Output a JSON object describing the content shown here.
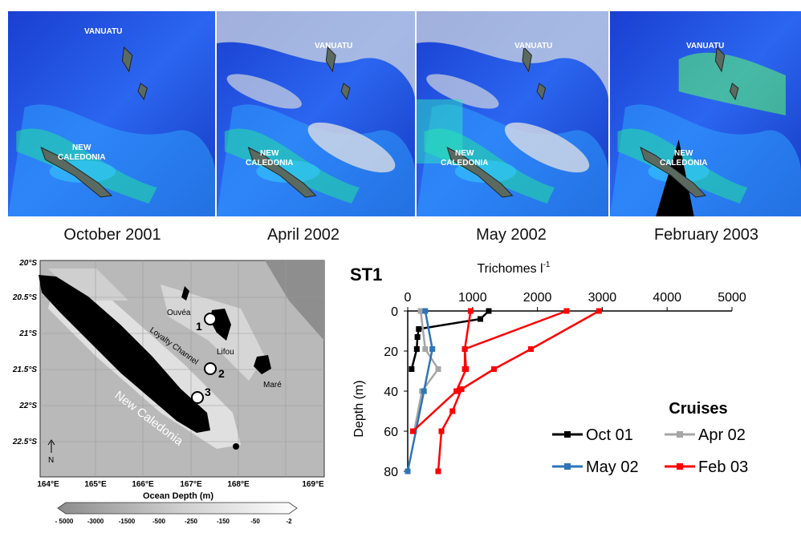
{
  "satellite_panels": [
    {
      "caption": "October 2001",
      "labels": [
        "VANUATU",
        "NEW CALEDONIA"
      ]
    },
    {
      "caption": "April 2002",
      "labels": [
        "VANUATU",
        "NEW CALEDONIA"
      ]
    },
    {
      "caption": "May 2002",
      "labels": [
        "VANUATU",
        "NEW CALEDONIA"
      ]
    },
    {
      "caption": "February 2003",
      "labels": [
        "VANUATU",
        "NEW CALEDONIA"
      ]
    }
  ],
  "map": {
    "lat_labels": [
      "20°S",
      "20.5°S",
      "21°S",
      "21.5°S",
      "22°S",
      "22.5°S"
    ],
    "lon_labels": [
      "164°E",
      "165°E",
      "166°E",
      "167°E",
      "168°E",
      "169°E"
    ],
    "place_labels": {
      "new_caledonia": "New Caledonia",
      "ouvea": "Ouvéa",
      "loyalty_channel": "Loyalty Channel",
      "lifou": "Lifou",
      "mare": "Maré",
      "north": "N"
    },
    "stations": [
      "1",
      "2",
      "3"
    ],
    "depth_legend": {
      "title": "Ocean Depth (m)",
      "ticks": [
        "- 5000",
        "-3000",
        "-1500",
        "-500",
        "-250",
        "-150",
        "-50",
        "-2"
      ]
    }
  },
  "chart_data": {
    "type": "line",
    "title": "ST1",
    "xlabel": "Trichomes l",
    "xlabel_superscript": "-1",
    "ylabel": "Depth (m)",
    "xlim": [
      0,
      5000
    ],
    "ylim": [
      80,
      0
    ],
    "x_ticks": [
      "0",
      "1000",
      "2000",
      "3000",
      "4000",
      "5000"
    ],
    "y_ticks": [
      "0",
      "20",
      "40",
      "60",
      "80"
    ],
    "legend_title": "Cruises",
    "series": [
      {
        "name": "Oct 01",
        "color": "#000000",
        "points": [
          [
            1250,
            0
          ],
          [
            1120,
            4
          ],
          [
            170,
            9
          ],
          [
            150,
            13
          ],
          [
            140,
            19
          ],
          [
            60,
            29
          ]
        ]
      },
      {
        "name": "Apr 02",
        "color": "#a6a6a6",
        "points": [
          [
            200,
            0
          ],
          [
            270,
            19
          ],
          [
            470,
            29
          ],
          [
            220,
            40
          ],
          [
            100,
            60
          ]
        ]
      },
      {
        "name": "May 02",
        "color": "#2e75b6",
        "points": [
          [
            270,
            0
          ],
          [
            380,
            19
          ],
          [
            250,
            40
          ],
          [
            0,
            80
          ]
        ]
      },
      {
        "name": "Feb 03",
        "color": "#ff0000",
        "points": [
          [
            2950,
            0
          ],
          [
            1900,
            19
          ],
          [
            1330,
            29
          ],
          [
            830,
            39
          ],
          [
            690,
            50
          ],
          [
            520,
            60
          ],
          [
            470,
            80
          ]
        ]
      },
      {
        "name": "Feb 03",
        "color": "#ff0000",
        "points": [
          [
            2450,
            0
          ],
          [
            880,
            19
          ],
          [
            900,
            29
          ],
          [
            750,
            40
          ],
          [
            80,
            60
          ]
        ]
      },
      {
        "name": "Feb 03",
        "color": "#ff0000",
        "points": [
          [
            970,
            0
          ],
          [
            880,
            19
          ],
          [
            880,
            29
          ]
        ]
      }
    ],
    "legend": [
      "Oct 01",
      "Apr 02",
      "May 02",
      "Feb 03"
    ]
  }
}
